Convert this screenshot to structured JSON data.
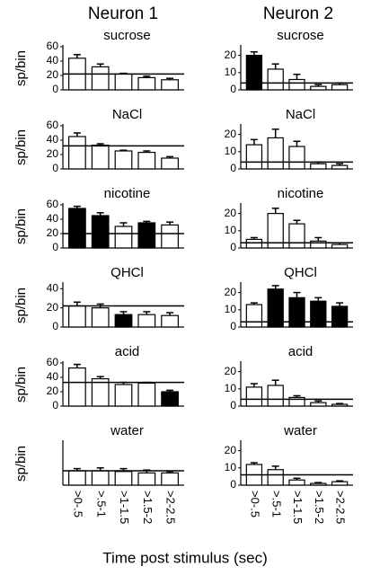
{
  "columns": [
    "Neuron 1",
    "Neuron 2"
  ],
  "categories": [
    ">0-.5",
    ">.5-1",
    ">1-1.5",
    ">1.5-2",
    ">2-2.5"
  ],
  "xlabel": "Time post stimulus (sec)",
  "chart_data": [
    {
      "type": "bar",
      "title": "sucrose",
      "ylabel": "sp/bin",
      "values": [
        44,
        32,
        22,
        17,
        14
      ],
      "errors": [
        5,
        4,
        1,
        2,
        2
      ],
      "colors": [
        "#ffffff",
        "#ffffff",
        "#ffffff",
        "#ffffff",
        "#ffffff"
      ],
      "baseline": 22,
      "ylim": [
        0,
        60
      ],
      "yticks": [
        0,
        20,
        40,
        60
      ]
    },
    {
      "type": "bar",
      "title": "NaCl",
      "ylabel": "sp/bin",
      "values": [
        45,
        33,
        25,
        23,
        15
      ],
      "errors": [
        5,
        2,
        1,
        2,
        2
      ],
      "colors": [
        "#ffffff",
        "#ffffff",
        "#ffffff",
        "#ffffff",
        "#ffffff"
      ],
      "baseline": 32,
      "ylim": [
        0,
        60
      ],
      "yticks": [
        0,
        20,
        40,
        60
      ]
    },
    {
      "type": "bar",
      "title": "nicotine",
      "ylabel": "sp/bin",
      "values": [
        55,
        45,
        30,
        35,
        32
      ],
      "errors": [
        3,
        4,
        5,
        2,
        4
      ],
      "colors": [
        "#000000",
        "#000000",
        "#ffffff",
        "#000000",
        "#ffffff"
      ],
      "baseline": 20,
      "ylim": [
        0,
        60
      ],
      "yticks": [
        0,
        20,
        40,
        60
      ]
    },
    {
      "type": "bar",
      "title": "QHCl",
      "ylabel": "sp/bin",
      "values": [
        22,
        20,
        13,
        13,
        12
      ],
      "errors": [
        4,
        4,
        3,
        3,
        3
      ],
      "colors": [
        "#ffffff",
        "#ffffff",
        "#000000",
        "#ffffff",
        "#ffffff"
      ],
      "baseline": 22,
      "ylim": [
        0,
        45
      ],
      "yticks": [
        0,
        20,
        40
      ]
    },
    {
      "type": "bar",
      "title": "acid",
      "ylabel": "sp/bin",
      "values": [
        53,
        38,
        30,
        32,
        20
      ],
      "errors": [
        5,
        3,
        3,
        1,
        2
      ],
      "colors": [
        "#ffffff",
        "#ffffff",
        "#ffffff",
        "#ffffff",
        "#000000"
      ],
      "baseline": 33,
      "ylim": [
        0,
        60
      ],
      "yticks": [
        0,
        20,
        40,
        60
      ]
    },
    {
      "type": "bar",
      "title": "water",
      "ylabel": "sp/bin",
      "values": [
        20,
        20,
        19,
        17,
        17
      ],
      "errors": [
        3,
        4,
        4,
        4,
        2
      ],
      "colors": [
        "#ffffff",
        "#ffffff",
        "#ffffff",
        "#ffffff",
        "#ffffff"
      ],
      "baseline": 20,
      "ylim": [
        0,
        60
      ]
    },
    {
      "type": "bar",
      "title": "sucrose",
      "values": [
        20,
        12,
        6,
        2,
        3
      ],
      "errors": [
        2,
        3,
        3,
        1,
        1
      ],
      "colors": [
        "#000000",
        "#ffffff",
        "#ffffff",
        "#ffffff",
        "#ffffff"
      ],
      "baseline": 4,
      "ylim": [
        0,
        25
      ],
      "yticks": [
        0,
        10,
        20
      ]
    },
    {
      "type": "bar",
      "title": "NaCl",
      "values": [
        14,
        18,
        13,
        3,
        2
      ],
      "errors": [
        3,
        5,
        3,
        1,
        1
      ],
      "colors": [
        "#ffffff",
        "#ffffff",
        "#ffffff",
        "#ffffff",
        "#ffffff"
      ],
      "baseline": 4,
      "ylim": [
        0,
        25
      ],
      "yticks": [
        0,
        10,
        20
      ]
    },
    {
      "type": "bar",
      "title": "nicotine",
      "values": [
        5,
        20,
        14,
        4,
        2
      ],
      "errors": [
        1,
        3,
        2,
        2,
        1
      ],
      "colors": [
        "#ffffff",
        "#ffffff",
        "#ffffff",
        "#ffffff",
        "#ffffff"
      ],
      "baseline": 3,
      "ylim": [
        0,
        25
      ],
      "yticks": [
        0,
        10,
        20
      ]
    },
    {
      "type": "bar",
      "title": "QHCl",
      "values": [
        13,
        22,
        17,
        15,
        12
      ],
      "errors": [
        1,
        2,
        3,
        2,
        2
      ],
      "colors": [
        "#ffffff",
        "#000000",
        "#000000",
        "#000000",
        "#000000"
      ],
      "baseline": 3,
      "ylim": [
        0,
        25
      ],
      "yticks": [
        0,
        10,
        20
      ]
    },
    {
      "type": "bar",
      "title": "acid",
      "values": [
        11,
        12,
        5,
        2,
        1
      ],
      "errors": [
        2,
        3,
        1,
        1,
        0.5
      ],
      "colors": [
        "#ffffff",
        "#ffffff",
        "#ffffff",
        "#ffffff",
        "#ffffff"
      ],
      "baseline": 4,
      "ylim": [
        0,
        25
      ],
      "yticks": [
        0,
        10,
        20
      ]
    },
    {
      "type": "bar",
      "title": "water",
      "values": [
        12,
        9,
        3,
        1,
        2
      ],
      "errors": [
        1,
        2,
        1,
        0.5,
        0.5
      ],
      "colors": [
        "#ffffff",
        "#ffffff",
        "#ffffff",
        "#ffffff",
        "#ffffff"
      ],
      "baseline": 6,
      "ylim": [
        0,
        25
      ],
      "yticks": [
        0,
        10,
        20
      ]
    }
  ]
}
